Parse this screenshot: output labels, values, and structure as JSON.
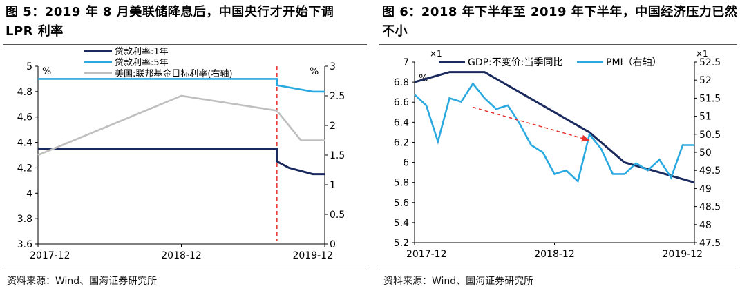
{
  "figures": [
    {
      "title": "图 5：2019 年 8 月美联储降息后，中国央行才开始下调 LPR 利率",
      "source": "资料来源：Wind、国海证券研究所"
    },
    {
      "title": "图 6：2018 年下半年至 2019 年下半年，中国经济压力已然不小",
      "source": "资料来源：Wind、国海证券研究所"
    }
  ],
  "chart_data": [
    {
      "type": "line",
      "x_tick_labels": [
        "2017-12",
        "2018-12",
        "2019-12"
      ],
      "x_range": [
        "2017-12",
        "2019-12"
      ],
      "left_axis": {
        "unit": "%",
        "ylim": [
          3.6,
          5
        ],
        "ticks": [
          "3.6",
          "3.8",
          "4",
          "4.2",
          "4.4",
          "4.6",
          "4.8",
          "5"
        ]
      },
      "right_axis": {
        "unit": "%",
        "ylim": [
          0,
          3
        ],
        "ticks": [
          "0",
          "0.5",
          "1",
          "1.5",
          "2",
          "2.5",
          "3"
        ]
      },
      "legend_position": "top-center",
      "vertical_marker": {
        "x": "2019-08",
        "style": "dashed",
        "color": "#e8302c"
      },
      "series": [
        {
          "name": "贷款利率:1年",
          "axis": "left",
          "color": "#1b2a5e",
          "step": true,
          "points": [
            [
              "2017-12",
              4.35
            ],
            [
              "2019-08",
              4.35
            ],
            [
              "2019-08",
              4.25
            ],
            [
              "2019-09",
              4.2
            ],
            [
              "2019-11",
              4.15
            ],
            [
              "2019-12",
              4.15
            ]
          ]
        },
        {
          "name": "贷款利率:5年",
          "axis": "left",
          "color": "#29a9e0",
          "step": true,
          "points": [
            [
              "2017-12",
              4.9
            ],
            [
              "2019-08",
              4.9
            ],
            [
              "2019-08",
              4.85
            ],
            [
              "2019-11",
              4.8
            ],
            [
              "2019-12",
              4.8
            ]
          ]
        },
        {
          "name": "美国:联邦基金目标利率(右轴)",
          "axis": "right",
          "color": "#bfbfbf",
          "step": true,
          "points": [
            [
              "2017-12",
              1.5
            ],
            [
              "2018-03",
              1.75
            ],
            [
              "2018-06",
              2.0
            ],
            [
              "2018-09",
              2.25
            ],
            [
              "2018-12",
              2.5
            ],
            [
              "2019-08",
              2.25
            ],
            [
              "2019-09",
              2.0
            ],
            [
              "2019-10",
              1.75
            ],
            [
              "2019-12",
              1.75
            ]
          ]
        }
      ]
    },
    {
      "type": "line",
      "x_tick_labels": [
        "2017-12",
        "2018-12",
        "2019-12"
      ],
      "x_range": [
        "2017-12",
        "2019-12"
      ],
      "left_axis": {
        "unit": "%",
        "multiplier": "×1",
        "ylim": [
          5.2,
          7
        ],
        "ticks": [
          "5.2",
          "5.4",
          "5.6",
          "5.8",
          "6",
          "6.2",
          "6.4",
          "6.6",
          "6.8",
          "7"
        ]
      },
      "right_axis": {
        "multiplier": "×1",
        "ylim": [
          47.5,
          52.5
        ],
        "ticks": [
          "47.5",
          "48",
          "48.5",
          "49",
          "49.5",
          "50",
          "50.5",
          "51",
          "51.5",
          "52",
          "52.5"
        ]
      },
      "legend_position": "top-center",
      "trend_arrow": {
        "from": [
          "2018-05",
          6.55
        ],
        "to": [
          "2019-03",
          6.22
        ],
        "style": "dashed",
        "color": "#e8302c"
      },
      "series": [
        {
          "name": "GDP:不变价:当季同比",
          "axis": "left",
          "color": "#1b2a5e",
          "points": [
            [
              "2017-12",
              6.8
            ],
            [
              "2018-03",
              6.9
            ],
            [
              "2018-06",
              6.9
            ],
            [
              "2018-09",
              6.7
            ],
            [
              "2018-12",
              6.5
            ],
            [
              "2019-03",
              6.3
            ],
            [
              "2019-06",
              6.0
            ],
            [
              "2019-09",
              5.9
            ],
            [
              "2019-12",
              5.8
            ]
          ]
        },
        {
          "name": "PMI（右轴）",
          "axis": "right",
          "color": "#29a9e0",
          "points": [
            [
              "2017-12",
              51.6
            ],
            [
              "2018-01",
              51.3
            ],
            [
              "2018-02",
              50.3
            ],
            [
              "2018-03",
              51.5
            ],
            [
              "2018-04",
              51.4
            ],
            [
              "2018-05",
              51.9
            ],
            [
              "2018-06",
              51.5
            ],
            [
              "2018-07",
              51.2
            ],
            [
              "2018-08",
              51.3
            ],
            [
              "2018-09",
              50.8
            ],
            [
              "2018-10",
              50.2
            ],
            [
              "2018-11",
              50.0
            ],
            [
              "2018-12",
              49.4
            ],
            [
              "2019-01",
              49.5
            ],
            [
              "2019-02",
              49.2
            ],
            [
              "2019-03",
              50.5
            ],
            [
              "2019-04",
              50.1
            ],
            [
              "2019-05",
              49.4
            ],
            [
              "2019-06",
              49.4
            ],
            [
              "2019-07",
              49.7
            ],
            [
              "2019-08",
              49.5
            ],
            [
              "2019-09",
              49.8
            ],
            [
              "2019-10",
              49.3
            ],
            [
              "2019-11",
              50.2
            ],
            [
              "2019-12",
              50.2
            ]
          ]
        }
      ]
    }
  ]
}
